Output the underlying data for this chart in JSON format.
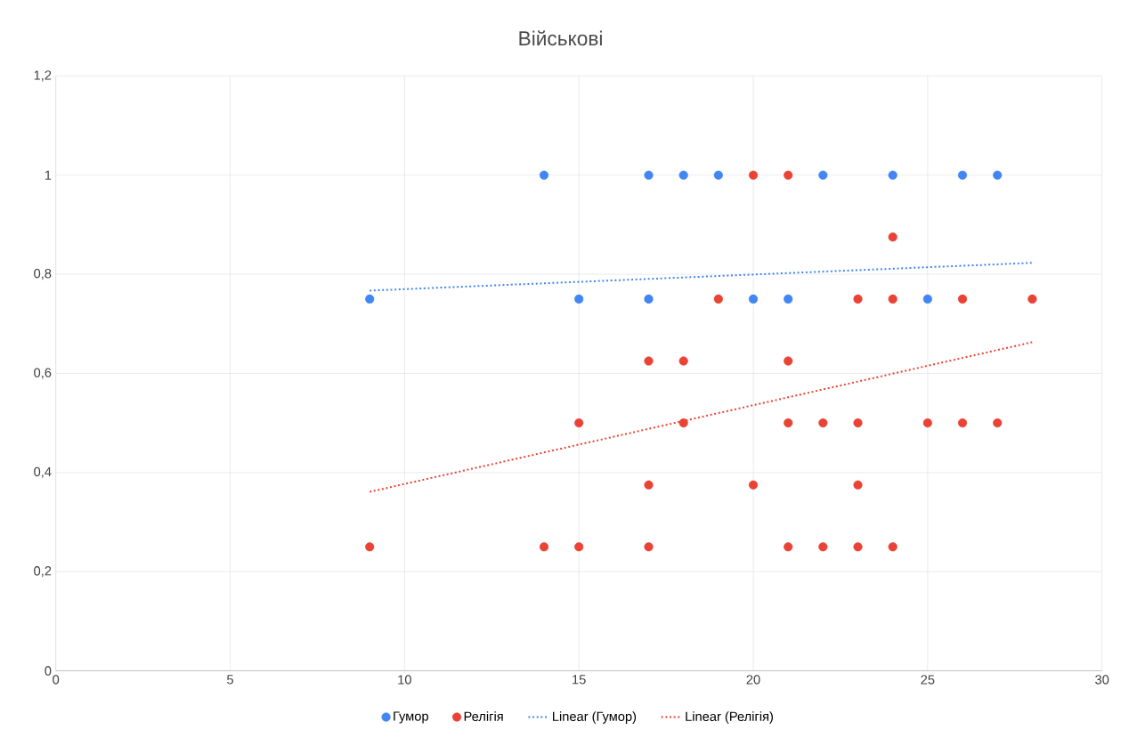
{
  "chart_data": {
    "type": "scatter",
    "title": "Військові",
    "xlim": [
      0,
      30
    ],
    "xticks": [
      0,
      5,
      10,
      15,
      20,
      25,
      30
    ],
    "ylim": [
      0,
      1.2
    ],
    "yticks": [
      0,
      {
        "value": 0.2,
        "label": "0,2"
      },
      {
        "value": 0.4,
        "label": "0,4"
      },
      {
        "value": 0.6,
        "label": "0,6"
      },
      {
        "value": 0.8,
        "label": "0,8"
      },
      1,
      {
        "value": 1.2,
        "label": "1,2"
      }
    ],
    "grid": true,
    "legend": "bottom",
    "marker": "circle",
    "series": [
      {
        "name": "Гумор",
        "color": "#4285f4",
        "x": [
          9,
          14,
          15,
          17,
          17,
          18,
          19,
          20,
          21,
          22,
          24,
          25,
          26,
          27
        ],
        "values": [
          0.75,
          1,
          0.75,
          1,
          0.75,
          1,
          1,
          0.75,
          0.75,
          1,
          1,
          0.75,
          1,
          1
        ]
      },
      {
        "name": "Релігія",
        "color": "#ea4335",
        "x": [
          9,
          14,
          15,
          15,
          17,
          17,
          17,
          18,
          18,
          19,
          20,
          20,
          21,
          21,
          21,
          21,
          22,
          22,
          23,
          23,
          23,
          23,
          24,
          24,
          24,
          25,
          26,
          26,
          27,
          28
        ],
        "values": [
          0.25,
          0.25,
          0.5,
          0.25,
          0.625,
          0.375,
          0.25,
          0.625,
          0.5,
          0.75,
          1,
          0.375,
          1,
          0.625,
          0.5,
          0.25,
          0.5,
          0.25,
          0.75,
          0.5,
          0.375,
          0.25,
          0.875,
          0.75,
          0.25,
          0.5,
          0.75,
          0.5,
          0.5,
          0.75
        ]
      },
      {
        "name": "Linear (Гумор)",
        "type": "line",
        "line_style": "dotted",
        "marker": "none",
        "color": "#4285f4",
        "x": [
          9,
          28
        ],
        "values": [
          0.767,
          0.823
        ]
      },
      {
        "name": "Linear (Релігія)",
        "type": "line",
        "line_style": "dotted",
        "marker": "none",
        "color": "#ea4335",
        "x": [
          9,
          28
        ],
        "values": [
          0.361,
          0.663
        ]
      }
    ]
  }
}
